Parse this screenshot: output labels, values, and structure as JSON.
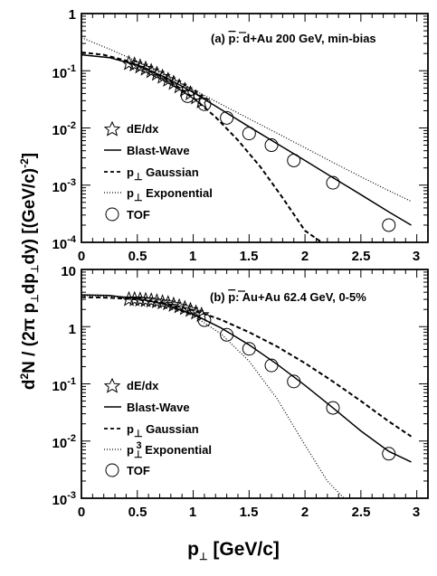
{
  "figure": {
    "xlabel": {
      "main": "p",
      "sub": "⊥",
      "unit": " [GeV/c]"
    },
    "ylabel": {
      "d2n": "d",
      "d2n_sup": "2",
      "n_over": "N / (2π p",
      "perp1": "⊥",
      "dp": "dp",
      "perp2": "⊥",
      "dy_unit": "dy) [(GeV/c)",
      "exp": "-2",
      "close": "]"
    }
  },
  "chart_data": [
    {
      "type": "scatter",
      "panel": "a",
      "annotation": {
        "prefix": "(a) ",
        "pbar": "p",
        "rest": ": d+Au 200 GeV, min-bias"
      },
      "xlim": [
        0,
        3.1
      ],
      "ylim": [
        0.0001,
        1
      ],
      "yscale": "log",
      "x_ticks": [
        "0",
        "0.5",
        "1",
        "1.5",
        "2",
        "2.5",
        "3"
      ],
      "y_ticks": [
        {
          "mant": "10",
          "exp": "-4"
        },
        {
          "mant": "10",
          "exp": "-3"
        },
        {
          "mant": "10",
          "exp": "-2"
        },
        {
          "mant": "10",
          "exp": "-1"
        },
        {
          "mant": "1",
          "exp": ""
        }
      ],
      "legend": [
        {
          "label": "dE/dx",
          "kind": "star"
        },
        {
          "label": "Blast-Wave",
          "kind": "solid"
        },
        {
          "label": "p",
          "sub": "⊥",
          "tail": " Gaussian",
          "kind": "dashed"
        },
        {
          "label": "p",
          "sub": "⊥",
          "tail": " Exponential",
          "kind": "dotted"
        },
        {
          "label": "TOF",
          "kind": "circle"
        }
      ],
      "series": [
        {
          "name": "dE/dx",
          "marker": "star",
          "x": [
            0.425,
            0.475,
            0.525,
            0.575,
            0.625,
            0.675,
            0.725,
            0.775,
            0.825,
            0.875,
            0.925,
            0.975,
            1.025,
            1.075
          ],
          "y": [
            0.135,
            0.128,
            0.118,
            0.108,
            0.098,
            0.088,
            0.078,
            0.069,
            0.061,
            0.053,
            0.046,
            0.04,
            0.034,
            0.029
          ]
        },
        {
          "name": "TOF",
          "marker": "circle",
          "x": [
            0.95,
            1.1,
            1.3,
            1.5,
            1.7,
            1.9,
            2.25,
            2.75
          ],
          "y": [
            0.036,
            0.026,
            0.015,
            0.008,
            0.005,
            0.0027,
            0.0011,
            0.0002
          ]
        },
        {
          "name": "Blast-Wave",
          "style": "solid",
          "x": [
            0,
            0.25,
            0.5,
            0.75,
            1.0,
            1.25,
            1.5,
            1.75,
            2.0,
            2.25,
            2.5,
            2.75,
            2.95
          ],
          "y": [
            0.19,
            0.17,
            0.125,
            0.077,
            0.042,
            0.021,
            0.0105,
            0.0053,
            0.0027,
            0.00135,
            0.00068,
            0.00034,
            0.0002
          ]
        },
        {
          "name": "pT Gaussian",
          "style": "dashed",
          "x": [
            0,
            0.2,
            0.4,
            0.6,
            0.8,
            1.0,
            1.2,
            1.4,
            1.6,
            1.8,
            2.0,
            2.15
          ],
          "y": [
            0.21,
            0.19,
            0.15,
            0.105,
            0.064,
            0.034,
            0.0155,
            0.0061,
            0.0021,
            0.0006,
            0.00016,
            0.0001
          ]
        },
        {
          "name": "pT Exponential",
          "style": "dotted",
          "x": [
            0,
            0.25,
            0.5,
            0.75,
            1.0,
            1.25,
            1.5,
            1.75,
            2.0,
            2.25,
            2.5,
            2.75,
            2.95
          ],
          "y": [
            0.38,
            0.24,
            0.145,
            0.083,
            0.047,
            0.026,
            0.0145,
            0.0081,
            0.0045,
            0.0025,
            0.0014,
            0.0008,
            0.00052
          ]
        }
      ]
    },
    {
      "type": "scatter",
      "panel": "b",
      "annotation": {
        "prefix": "(b) ",
        "pbar": "p",
        "rest": ": Au+Au 62.4 GeV, 0-5%"
      },
      "xlim": [
        0,
        3.1
      ],
      "ylim": [
        0.001,
        10
      ],
      "yscale": "log",
      "x_ticks": [
        "0",
        "0.5",
        "1",
        "1.5",
        "2",
        "2.5",
        "3"
      ],
      "y_ticks": [
        {
          "mant": "10",
          "exp": "-3"
        },
        {
          "mant": "10",
          "exp": "-2"
        },
        {
          "mant": "10",
          "exp": "-1"
        },
        {
          "mant": "1",
          "exp": ""
        },
        {
          "mant": "10",
          "exp": ""
        }
      ],
      "legend": [
        {
          "label": "dE/dx",
          "kind": "star"
        },
        {
          "label": "Blast-Wave",
          "kind": "solid"
        },
        {
          "label": "p",
          "sub": "⊥",
          "tail": " Gaussian",
          "kind": "dashed"
        },
        {
          "label": "p",
          "sub": "⊥",
          "sup": "3",
          "tail": " Exponential",
          "kind": "dotted"
        },
        {
          "label": "TOF",
          "kind": "circle"
        }
      ],
      "series": [
        {
          "name": "dE/dx",
          "marker": "star",
          "x": [
            0.425,
            0.475,
            0.525,
            0.575,
            0.625,
            0.675,
            0.725,
            0.775,
            0.825,
            0.875,
            0.925,
            0.975,
            1.025,
            1.075
          ],
          "y": [
            3.0,
            3.0,
            2.95,
            2.9,
            2.85,
            2.75,
            2.65,
            2.55,
            2.4,
            2.25,
            2.1,
            1.95,
            1.75,
            1.6
          ]
        },
        {
          "name": "TOF",
          "marker": "circle",
          "x": [
            1.1,
            1.3,
            1.5,
            1.7,
            1.9,
            2.25,
            2.75
          ],
          "y": [
            1.3,
            0.72,
            0.41,
            0.21,
            0.11,
            0.038,
            0.006
          ]
        },
        {
          "name": "Blast-Wave",
          "style": "solid",
          "x": [
            0,
            0.25,
            0.5,
            0.75,
            1.0,
            1.25,
            1.5,
            1.75,
            2.0,
            2.25,
            2.5,
            2.75,
            2.95
          ],
          "y": [
            3.6,
            3.5,
            3.1,
            2.45,
            1.65,
            0.95,
            0.48,
            0.22,
            0.094,
            0.038,
            0.015,
            0.0066,
            0.0043
          ]
        },
        {
          "name": "pT Gaussian",
          "style": "dashed",
          "x": [
            0,
            0.25,
            0.5,
            0.75,
            1.0,
            1.25,
            1.5,
            1.75,
            2.0,
            2.25,
            2.5,
            2.75,
            2.95
          ],
          "y": [
            3.3,
            3.2,
            3.0,
            2.55,
            1.95,
            1.32,
            0.8,
            0.45,
            0.23,
            0.11,
            0.05,
            0.022,
            0.012
          ]
        },
        {
          "name": "pT3 Exponential",
          "style": "dotted",
          "x": [
            0,
            0.25,
            0.5,
            0.75,
            1.0,
            1.25,
            1.5,
            1.75,
            2.0,
            2.2,
            2.35
          ],
          "y": [
            3.5,
            3.4,
            3.1,
            2.5,
            1.55,
            0.75,
            0.25,
            0.055,
            0.0085,
            0.002,
            0.001
          ]
        }
      ]
    }
  ]
}
